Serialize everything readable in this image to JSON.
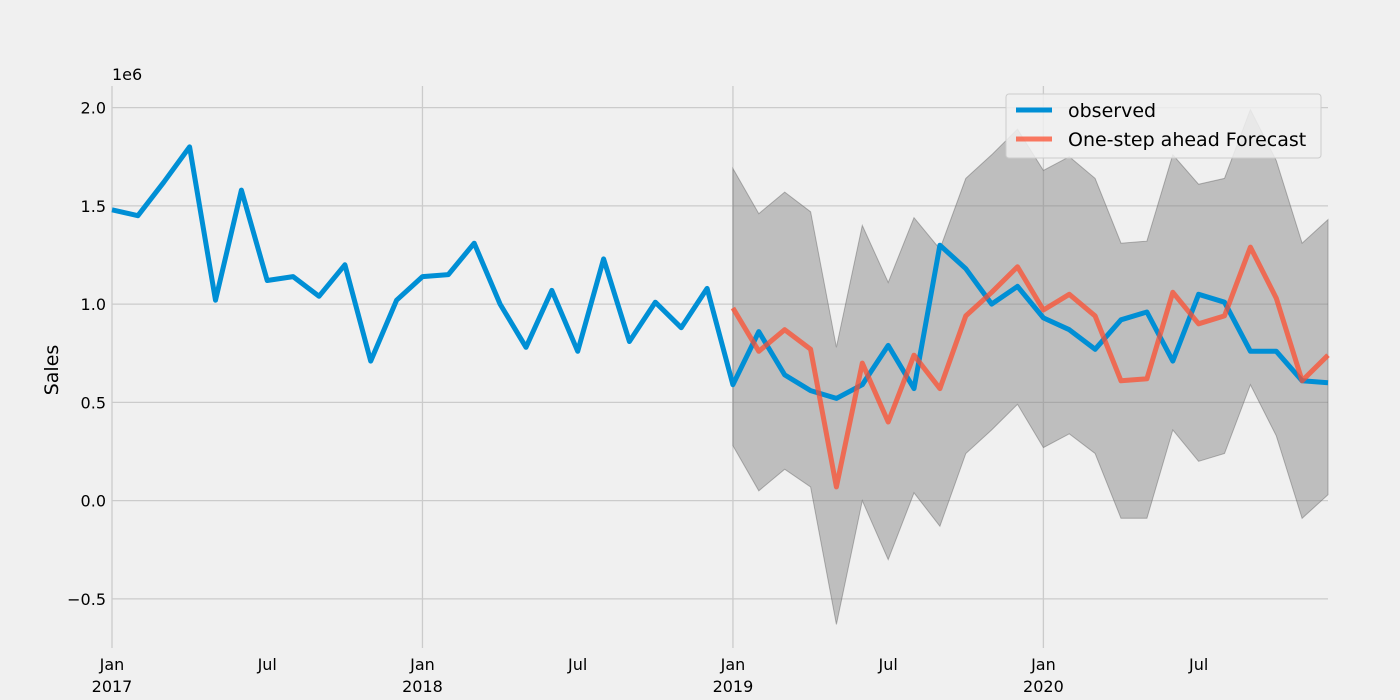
{
  "chart_data": {
    "type": "line",
    "ylabel": "Sales",
    "y_offset_label": "1e6",
    "y_scale": 1000000,
    "ylim": [
      -750000,
      2110000
    ],
    "xlim": [
      "2017-01",
      "2020-12"
    ],
    "grid": true,
    "legend_placement": "top-right",
    "y_ticks": [
      {
        "value": -500000,
        "label": "−0.5"
      },
      {
        "value": 0,
        "label": "0.0"
      },
      {
        "value": 500000,
        "label": "0.5"
      },
      {
        "value": 1000000,
        "label": "1.0"
      },
      {
        "value": 1500000,
        "label": "1.5"
      },
      {
        "value": 2000000,
        "label": "2.0"
      }
    ],
    "x_ticks": [
      {
        "date": "2017-01",
        "label": "Jan",
        "year": "2017",
        "grid": true
      },
      {
        "date": "2017-07",
        "label": "Jul",
        "year": "",
        "grid": false
      },
      {
        "date": "2018-01",
        "label": "Jan",
        "year": "2018",
        "grid": true
      },
      {
        "date": "2018-07",
        "label": "Jul",
        "year": "",
        "grid": false
      },
      {
        "date": "2019-01",
        "label": "Jan",
        "year": "2019",
        "grid": true
      },
      {
        "date": "2019-07",
        "label": "Jul",
        "year": "",
        "grid": false
      },
      {
        "date": "2020-01",
        "label": "Jan",
        "year": "2020",
        "grid": true
      },
      {
        "date": "2020-07",
        "label": "Jul",
        "year": "",
        "grid": false
      }
    ],
    "series": [
      {
        "name": "observed",
        "color": "#008fd5",
        "x": [
          "2017-01",
          "2017-02",
          "2017-03",
          "2017-04",
          "2017-05",
          "2017-06",
          "2017-07",
          "2017-08",
          "2017-09",
          "2017-10",
          "2017-11",
          "2017-12",
          "2018-01",
          "2018-02",
          "2018-03",
          "2018-04",
          "2018-05",
          "2018-06",
          "2018-07",
          "2018-08",
          "2018-09",
          "2018-10",
          "2018-11",
          "2018-12",
          "2019-01",
          "2019-02",
          "2019-03",
          "2019-04",
          "2019-05",
          "2019-06",
          "2019-07",
          "2019-08",
          "2019-09",
          "2019-10",
          "2019-11",
          "2019-12",
          "2020-01",
          "2020-02",
          "2020-03",
          "2020-04",
          "2020-05",
          "2020-06",
          "2020-07",
          "2020-08",
          "2020-09",
          "2020-10",
          "2020-11",
          "2020-12"
        ],
        "values": [
          1480000,
          1450000,
          1620000,
          1800000,
          1020000,
          1580000,
          1120000,
          1140000,
          1040000,
          1200000,
          710000,
          1020000,
          1140000,
          1150000,
          1310000,
          1000000,
          780000,
          1070000,
          760000,
          1230000,
          810000,
          1010000,
          880000,
          1080000,
          590000,
          860000,
          640000,
          560000,
          520000,
          590000,
          790000,
          570000,
          1300000,
          1180000,
          1000000,
          1090000,
          930000,
          870000,
          770000,
          920000,
          960000,
          710000,
          1050000,
          1010000,
          760000,
          760000,
          610000,
          600000
        ]
      },
      {
        "name": "One-step ahead Forecast",
        "color": "#fc4f30",
        "x": [
          "2019-01",
          "2019-02",
          "2019-03",
          "2019-04",
          "2019-05",
          "2019-06",
          "2019-07",
          "2019-08",
          "2019-09",
          "2019-10",
          "2019-11",
          "2019-12",
          "2020-01",
          "2020-02",
          "2020-03",
          "2020-04",
          "2020-05",
          "2020-06",
          "2020-07",
          "2020-08",
          "2020-09",
          "2020-10",
          "2020-11",
          "2020-12"
        ],
        "values": [
          980000,
          760000,
          870000,
          770000,
          70000,
          700000,
          400000,
          740000,
          570000,
          940000,
          1060000,
          1190000,
          970000,
          1050000,
          940000,
          610000,
          620000,
          1060000,
          900000,
          940000,
          1290000,
          1030000,
          610000,
          740000
        ],
        "lower": [
          280000,
          50000,
          160000,
          70000,
          -630000,
          0,
          -300000,
          40000,
          -130000,
          240000,
          360000,
          490000,
          270000,
          340000,
          240000,
          -90000,
          -90000,
          360000,
          200000,
          240000,
          590000,
          330000,
          -90000,
          30000
        ],
        "upper": [
          1690000,
          1460000,
          1570000,
          1470000,
          780000,
          1400000,
          1110000,
          1440000,
          1280000,
          1640000,
          1760000,
          1890000,
          1680000,
          1750000,
          1640000,
          1310000,
          1320000,
          1760000,
          1610000,
          1640000,
          1990000,
          1730000,
          1310000,
          1430000
        ]
      }
    ]
  }
}
